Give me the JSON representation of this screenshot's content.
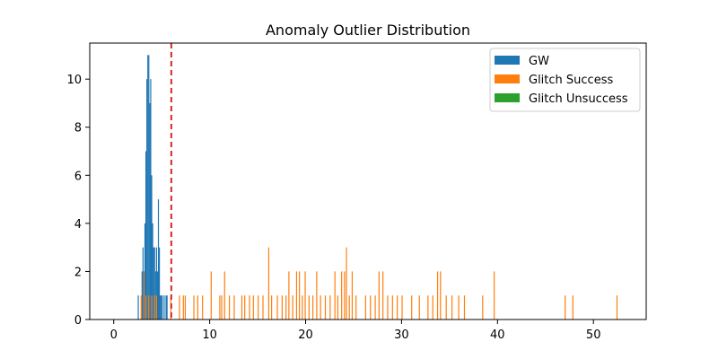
{
  "chart_data": {
    "type": "bar",
    "title": "Anomaly Outlier Distribution",
    "xlabel": "",
    "ylabel": "",
    "xlim": [
      -2.5,
      55.5
    ],
    "ylim": [
      0,
      11.5
    ],
    "xticks": [
      0,
      10,
      20,
      30,
      40,
      50
    ],
    "yticks": [
      0,
      2,
      4,
      6,
      8,
      10
    ],
    "legend_position": "top-right",
    "threshold": {
      "x": 6.0,
      "color": "#d62728",
      "style": "dashed"
    },
    "colors": {
      "GW": "#1f77b4",
      "Glitch Success": "#ff7f0e",
      "Glitch Unsuccess": "#2ca02c"
    },
    "series": [
      {
        "name": "GW",
        "bar_width": 0.1,
        "points": [
          [
            2.5,
            1
          ],
          [
            2.9,
            2
          ],
          [
            3.0,
            3
          ],
          [
            3.1,
            2
          ],
          [
            3.2,
            4
          ],
          [
            3.3,
            7
          ],
          [
            3.4,
            10
          ],
          [
            3.5,
            11
          ],
          [
            3.6,
            11
          ],
          [
            3.7,
            9
          ],
          [
            3.8,
            10
          ],
          [
            3.9,
            6
          ],
          [
            4.0,
            4
          ],
          [
            4.1,
            3
          ],
          [
            4.2,
            3
          ],
          [
            4.3,
            2
          ],
          [
            4.4,
            3
          ],
          [
            4.5,
            2
          ],
          [
            4.6,
            5
          ],
          [
            4.7,
            3
          ],
          [
            4.8,
            1
          ],
          [
            4.9,
            1
          ],
          [
            5.0,
            1
          ],
          [
            5.2,
            1
          ],
          [
            5.4,
            1
          ],
          [
            5.5,
            1
          ]
        ]
      },
      {
        "name": "Glitch Success",
        "bar_width": 0.08,
        "points": [
          [
            2.8,
            1
          ],
          [
            3.1,
            2
          ],
          [
            3.3,
            1
          ],
          [
            3.6,
            1
          ],
          [
            3.9,
            1
          ],
          [
            4.2,
            1
          ],
          [
            4.4,
            1
          ],
          [
            5.9,
            1
          ],
          [
            6.8,
            1
          ],
          [
            7.2,
            1
          ],
          [
            7.4,
            1
          ],
          [
            8.3,
            1
          ],
          [
            8.7,
            1
          ],
          [
            9.2,
            1
          ],
          [
            10.1,
            2
          ],
          [
            11.0,
            1
          ],
          [
            11.2,
            1
          ],
          [
            11.5,
            2
          ],
          [
            12.0,
            1
          ],
          [
            12.5,
            1
          ],
          [
            13.3,
            1
          ],
          [
            13.6,
            1
          ],
          [
            14.1,
            1
          ],
          [
            14.5,
            1
          ],
          [
            15.0,
            1
          ],
          [
            15.5,
            1
          ],
          [
            16.1,
            3
          ],
          [
            16.4,
            1
          ],
          [
            17.0,
            1
          ],
          [
            17.5,
            1
          ],
          [
            17.9,
            1
          ],
          [
            18.2,
            2
          ],
          [
            18.6,
            1
          ],
          [
            19.0,
            2
          ],
          [
            19.3,
            2
          ],
          [
            19.6,
            1
          ],
          [
            19.9,
            2
          ],
          [
            20.3,
            1
          ],
          [
            20.7,
            1
          ],
          [
            21.1,
            2
          ],
          [
            21.5,
            1
          ],
          [
            22.0,
            1
          ],
          [
            22.5,
            1
          ],
          [
            23.0,
            2
          ],
          [
            23.3,
            1
          ],
          [
            23.7,
            2
          ],
          [
            24.0,
            2
          ],
          [
            24.2,
            3
          ],
          [
            24.5,
            1
          ],
          [
            24.8,
            2
          ],
          [
            25.2,
            1
          ],
          [
            26.2,
            1
          ],
          [
            26.7,
            1
          ],
          [
            27.2,
            1
          ],
          [
            27.6,
            2
          ],
          [
            28.0,
            2
          ],
          [
            28.5,
            1
          ],
          [
            29.0,
            1
          ],
          [
            29.5,
            1
          ],
          [
            30.0,
            1
          ],
          [
            31.0,
            1
          ],
          [
            31.8,
            1
          ],
          [
            32.7,
            1
          ],
          [
            33.2,
            1
          ],
          [
            33.7,
            2
          ],
          [
            34.0,
            2
          ],
          [
            34.6,
            1
          ],
          [
            35.2,
            1
          ],
          [
            35.9,
            1
          ],
          [
            36.5,
            1
          ],
          [
            38.4,
            1
          ],
          [
            39.6,
            2
          ],
          [
            47.0,
            1
          ],
          [
            47.8,
            1
          ],
          [
            52.4,
            1
          ]
        ]
      },
      {
        "name": "Glitch Unsuccess",
        "bar_width": 0.08,
        "points": []
      }
    ]
  }
}
